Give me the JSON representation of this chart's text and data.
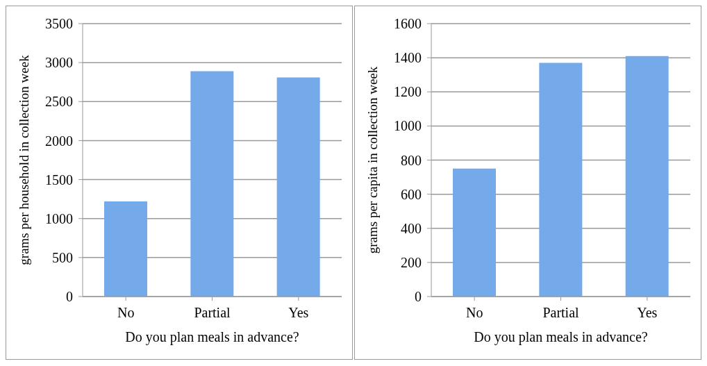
{
  "chart_data": [
    {
      "type": "bar",
      "xlabel": "Do you plan meals in advance?",
      "ylabel": "grams per household in collection week",
      "categories": [
        "No",
        "Partial",
        "Yes"
      ],
      "values": [
        1220,
        2890,
        2810
      ],
      "color": "#74a9ea",
      "ylim": [
        0,
        3500
      ],
      "yticks": [
        0,
        500,
        1000,
        1500,
        2000,
        2500,
        3000,
        3500
      ],
      "grid": "y",
      "legend": false
    },
    {
      "type": "bar",
      "xlabel": "Do you plan meals in advance?",
      "ylabel": "grams per capita in collection week",
      "categories": [
        "No",
        "Partial",
        "Yes"
      ],
      "values": [
        750,
        1370,
        1410
      ],
      "color": "#74a9ea",
      "ylim": [
        0,
        1600
      ],
      "yticks": [
        0,
        200,
        400,
        600,
        800,
        1000,
        1200,
        1400,
        1600
      ],
      "grid": "y",
      "legend": false
    }
  ]
}
